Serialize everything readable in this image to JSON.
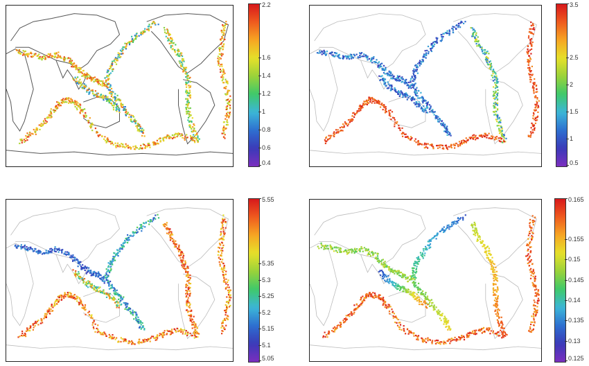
{
  "panels": [
    {
      "id": "panel-top-left",
      "colorbar_labels": [
        "2.2",
        "1.6",
        "1.4",
        "1.2",
        "1",
        "0.8",
        "0.6",
        "0.4"
      ],
      "scale": {
        "min": 0.4,
        "max": 2.2
      },
      "band_pattern": "subduction-mixed"
    },
    {
      "id": "panel-top-right",
      "colorbar_labels": [
        "3.5",
        "2.5",
        "2",
        "1.5",
        "1",
        "0.5"
      ],
      "scale": {
        "min": 0.5,
        "max": 3.5
      },
      "band_pattern": "pacific-blue"
    },
    {
      "id": "panel-bottom-left",
      "colorbar_labels": [
        "5.55",
        "5.35",
        "5.3",
        "5.25",
        "5.2",
        "5.15",
        "5.1",
        "5.05"
      ],
      "scale": {
        "min": 5.05,
        "max": 5.55
      },
      "band_pattern": "asia-blue"
    },
    {
      "id": "panel-bottom-right",
      "colorbar_labels": [
        "0.165",
        "0.155",
        "0.15",
        "0.145",
        "0.14",
        "0.135",
        "0.13",
        "0.125"
      ],
      "scale": {
        "min": 0.125,
        "max": 0.165
      },
      "band_pattern": "smooth-gradient"
    }
  ],
  "colors": {
    "ramp": [
      "#7b2fbf",
      "#3a3ab8",
      "#2e6fd0",
      "#3cb6d8",
      "#3ec96a",
      "#9ad23a",
      "#e6e02a",
      "#f6a623",
      "#ef5a1e",
      "#d7191c"
    ]
  }
}
